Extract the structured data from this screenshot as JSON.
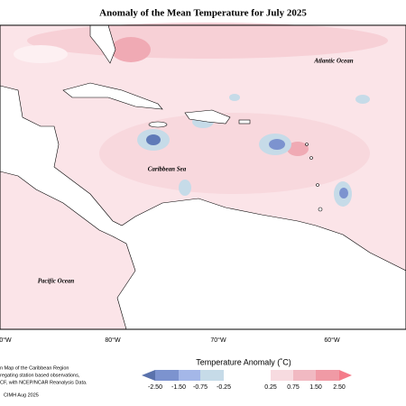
{
  "title": "Anomaly of the Mean Temperature for July 2025",
  "map": {
    "labels": [
      "Atlantic Ocean",
      "Caribbean Sea",
      "Pacific Ocean"
    ],
    "longitudes": [
      "0°W",
      "80°W",
      "70°W",
      "60°W"
    ]
  },
  "legend": {
    "title": "Temperature Anomaly (˚C)",
    "ticks": [
      "-2.50",
      "-1.50",
      "-0.75",
      "-0.25",
      "0.25",
      "0.75",
      "1.50",
      "2.50"
    ]
  },
  "footnote": [
    "n Map of the Caribbean Region",
    "regating station based observations,",
    "CF, with NCEP/NCAR Reanalysis Data."
  ],
  "credit": "CIMH Aug 2025"
}
